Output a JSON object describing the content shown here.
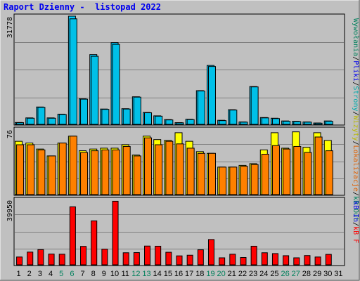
{
  "title": "Raport Dzienny -  listopad 2022",
  "colors": {
    "background": "#c0c0c0",
    "title": "#0000ee",
    "weekday_label": "#000000",
    "weekend_label": "#00805c",
    "hits_bar": "#00ccff",
    "files_bar": "#00c0e8",
    "pages_bar": "#00ffff",
    "visits_bar": "#ffff00",
    "sites_bar": "#ff8000",
    "kbytes_bar": "#ff0000",
    "gridline": "#808080"
  },
  "side_labels": {
    "top": [
      {
        "text": "Wywołania",
        "color": "#00805c"
      },
      {
        "text": "/",
        "color": "#000000"
      },
      {
        "text": "Pliki",
        "color": "#0000ee"
      },
      {
        "text": "/",
        "color": "#000000"
      },
      {
        "text": "Strony",
        "color": "#00aaaa"
      },
      {
        "text": "/",
        "color": "#000000"
      },
      {
        "text": "Wizyty",
        "color": "#b8b800"
      },
      {
        "text": "/",
        "color": "#000000"
      },
      {
        "text": "Lokalizacje",
        "color": "#e06000"
      },
      {
        "text": "/",
        "color": "#000000"
      },
      {
        "text": "kB Out",
        "color": "#00805c"
      }
    ],
    "bottom": [
      {
        "text": "kB In",
        "color": "#0000ee"
      },
      {
        "text": "/",
        "color": "#000000"
      },
      {
        "text": "kB F",
        "color": "#ff0000"
      }
    ]
  },
  "chart_data": [
    {
      "type": "bar",
      "panel": "hits-files",
      "ymax_label": "31778",
      "ylim": [
        0,
        31778
      ],
      "x": [
        "1",
        "2",
        "3",
        "4",
        "5",
        "6",
        "7",
        "8",
        "9",
        "10",
        "11",
        "12",
        "13",
        "14",
        "15",
        "16",
        "17",
        "18",
        "19",
        "20",
        "21",
        "22",
        "23",
        "24",
        "25",
        "26",
        "27",
        "28",
        "29",
        "30",
        "31"
      ],
      "series": [
        {
          "values": [
            550,
            1900,
            5100,
            1900,
            3000,
            31778,
            7500,
            20500,
            4500,
            24000,
            4600,
            8100,
            3500,
            2500,
            1400,
            500,
            1500,
            9900,
            17300,
            1200,
            4300,
            700,
            11100,
            2000,
            1800,
            1000,
            900,
            700,
            400,
            1000,
            0
          ]
        },
        {
          "values": [
            500,
            1800,
            5000,
            1800,
            2900,
            31000,
            7400,
            20000,
            4400,
            23500,
            4500,
            8000,
            3400,
            2400,
            1300,
            450,
            1400,
            9800,
            17000,
            1100,
            4200,
            650,
            11000,
            1900,
            1700,
            900,
            800,
            650,
            350,
            900,
            0
          ]
        }
      ]
    },
    {
      "type": "bar",
      "panel": "visits-sites",
      "ymax_label": "76",
      "ylim": [
        0,
        76
      ],
      "x": [
        "1",
        "2",
        "3",
        "4",
        "5",
        "6",
        "7",
        "8",
        "9",
        "10",
        "11",
        "12",
        "13",
        "14",
        "15",
        "16",
        "17",
        "18",
        "19",
        "20",
        "21",
        "22",
        "23",
        "24",
        "25",
        "26",
        "27",
        "28",
        "29",
        "30",
        "31"
      ],
      "series": [
        {
          "values": [
            62,
            60,
            53,
            45,
            60,
            68,
            51,
            53,
            54,
            54,
            58,
            46,
            68,
            64,
            63,
            72,
            62,
            50,
            48,
            32,
            32,
            34,
            36,
            52,
            72,
            54,
            73,
            55,
            72,
            63,
            0
          ]
        },
        {
          "values": [
            58,
            58,
            52,
            45,
            60,
            68,
            49,
            51,
            52,
            52,
            56,
            45,
            66,
            58,
            62,
            59,
            54,
            48,
            48,
            32,
            32,
            33,
            35,
            47,
            57,
            53,
            56,
            49,
            67,
            51,
            0
          ]
        }
      ]
    },
    {
      "type": "bar",
      "panel": "kbytes",
      "ymax_label": "39950",
      "ylim": [
        0,
        39950
      ],
      "x": [
        "1",
        "2",
        "3",
        "4",
        "5",
        "6",
        "7",
        "8",
        "9",
        "10",
        "11",
        "12",
        "13",
        "14",
        "15",
        "16",
        "17",
        "18",
        "19",
        "20",
        "21",
        "22",
        "23",
        "24",
        "25",
        "26",
        "27",
        "28",
        "29",
        "30",
        "31"
      ],
      "series": [
        {
          "values": [
            4800,
            7800,
            9300,
            6600,
            6500,
            35500,
            11300,
            26900,
            9600,
            38900,
            7400,
            7500,
            11500,
            11400,
            7700,
            5500,
            5900,
            9200,
            15500,
            4300,
            6500,
            4500,
            11400,
            7400,
            6900,
            5600,
            4300,
            5700,
            4800,
            6400,
            0
          ]
        }
      ]
    }
  ],
  "x_labels": [
    {
      "text": "1",
      "weekend": false
    },
    {
      "text": "2",
      "weekend": false
    },
    {
      "text": "3",
      "weekend": false
    },
    {
      "text": "4",
      "weekend": false
    },
    {
      "text": "5",
      "weekend": true
    },
    {
      "text": "6",
      "weekend": true
    },
    {
      "text": "7",
      "weekend": false
    },
    {
      "text": "8",
      "weekend": false
    },
    {
      "text": "9",
      "weekend": false
    },
    {
      "text": "10",
      "weekend": false
    },
    {
      "text": "11",
      "weekend": false
    },
    {
      "text": "12",
      "weekend": true
    },
    {
      "text": "13",
      "weekend": true
    },
    {
      "text": "14",
      "weekend": false
    },
    {
      "text": "15",
      "weekend": false
    },
    {
      "text": "16",
      "weekend": false
    },
    {
      "text": "17",
      "weekend": false
    },
    {
      "text": "18",
      "weekend": false
    },
    {
      "text": "19",
      "weekend": true
    },
    {
      "text": "20",
      "weekend": true
    },
    {
      "text": "21",
      "weekend": false
    },
    {
      "text": "22",
      "weekend": false
    },
    {
      "text": "23",
      "weekend": false
    },
    {
      "text": "24",
      "weekend": false
    },
    {
      "text": "25",
      "weekend": false
    },
    {
      "text": "26",
      "weekend": true
    },
    {
      "text": "27",
      "weekend": true
    },
    {
      "text": "28",
      "weekend": false
    },
    {
      "text": "29",
      "weekend": false
    },
    {
      "text": "30",
      "weekend": false
    },
    {
      "text": "31",
      "weekend": false
    }
  ]
}
